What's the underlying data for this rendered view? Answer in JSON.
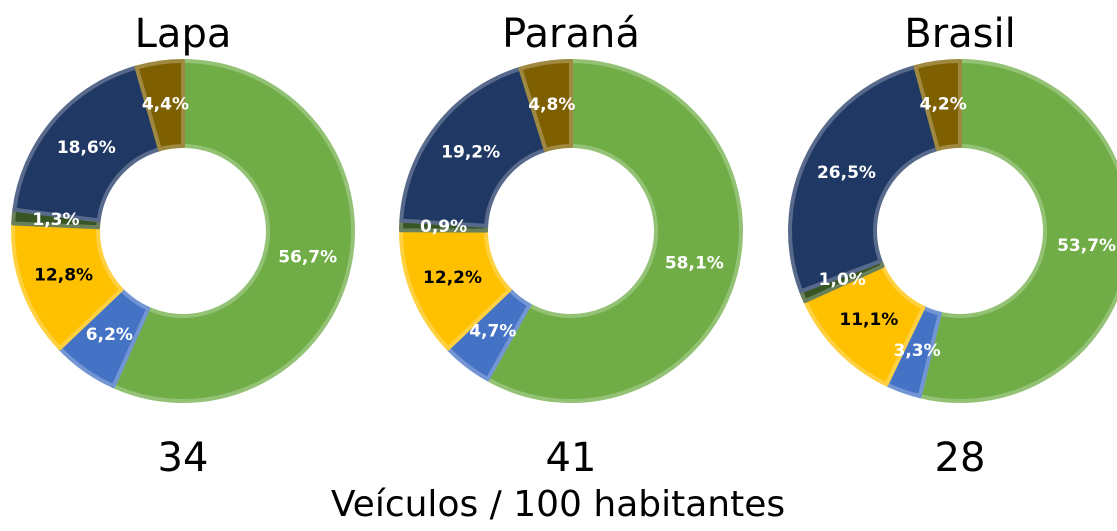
{
  "chart_data": [
    {
      "type": "donut",
      "title": "Lapa",
      "subtitle": 34,
      "values": [
        56.7,
        6.2,
        12.8,
        1.3,
        18.6,
        4.4
      ],
      "value_labels": [
        "56,7%",
        "6,2%",
        "12,8%",
        "1,3%",
        "18,6%",
        "4,4%"
      ],
      "colors": [
        "#70ad47",
        "#4472c4",
        "#ffc000",
        "#375623",
        "#203864",
        "#7f6000"
      ],
      "label_colors": [
        "#ffffff",
        "#ffffff",
        "#000000",
        "#ffffff",
        "#ffffff",
        "#ffffff"
      ]
    },
    {
      "type": "donut",
      "title": "Paraná",
      "subtitle": 41,
      "values": [
        58.1,
        4.7,
        12.2,
        0.9,
        19.2,
        4.8
      ],
      "value_labels": [
        "58,1%",
        "4,7%",
        "12,2%",
        "0,9%",
        "19,2%",
        "4,8%"
      ],
      "colors": [
        "#70ad47",
        "#4472c4",
        "#ffc000",
        "#375623",
        "#203864",
        "#7f6000"
      ],
      "label_colors": [
        "#ffffff",
        "#ffffff",
        "#000000",
        "#ffffff",
        "#ffffff",
        "#ffffff"
      ]
    },
    {
      "type": "donut",
      "title": "Brasil",
      "subtitle": 28,
      "values": [
        53.7,
        3.3,
        11.1,
        1.0,
        26.5,
        4.2
      ],
      "value_labels": [
        "53,7%",
        "3,3%",
        "11,1%",
        "1,0%",
        "26,5%",
        "4,2%"
      ],
      "colors": [
        "#70ad47",
        "#4472c4",
        "#ffc000",
        "#375623",
        "#203864",
        "#7f6000"
      ],
      "label_colors": [
        "#ffffff",
        "#ffffff",
        "#000000",
        "#ffffff",
        "#ffffff",
        "#ffffff"
      ]
    }
  ],
  "caption": "Veículos / 100 habitantes"
}
